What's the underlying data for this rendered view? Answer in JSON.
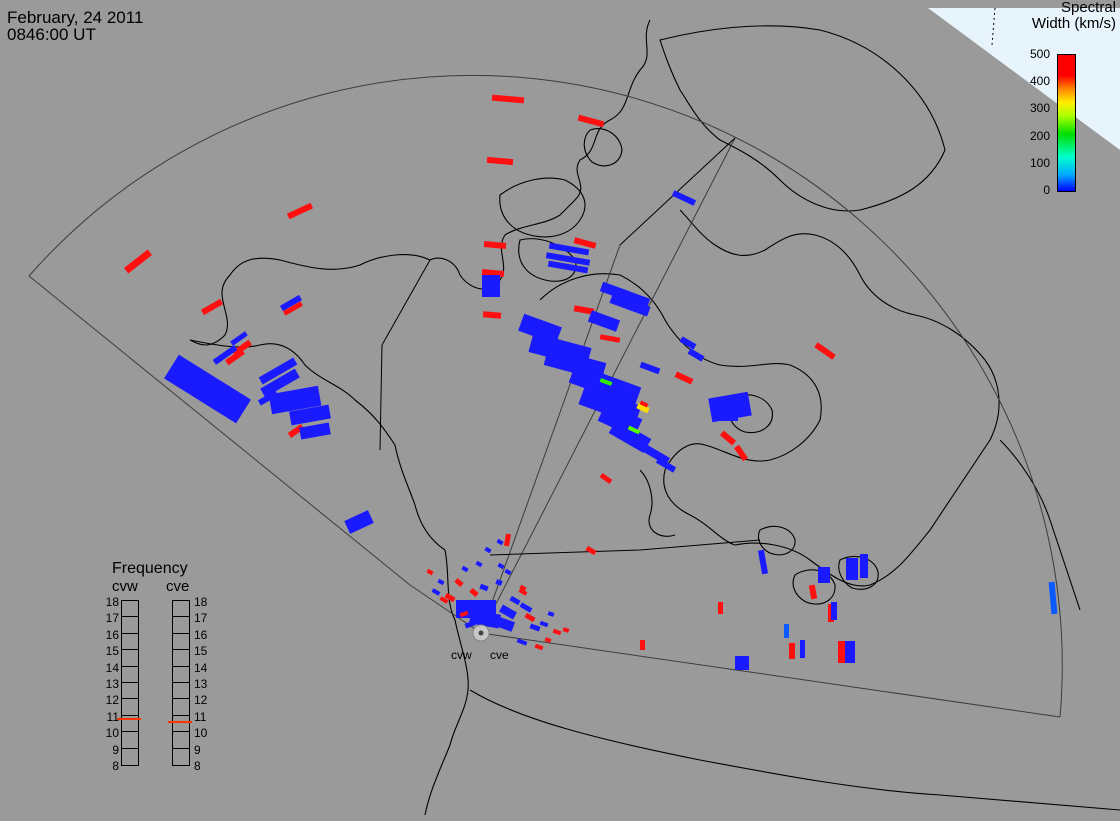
{
  "header": {
    "date": "February, 24 2011",
    "time": "0846:00 UT"
  },
  "colorbar": {
    "title_line1": "Spectral",
    "title_line2": "Width (km/s)",
    "ticks": [
      "500",
      "400",
      "300",
      "200",
      "100",
      "0"
    ],
    "min": 0,
    "max": 500,
    "colors": [
      "#0000ff",
      "#00aaff",
      "#00ffcc",
      "#00dd00",
      "#ffee00",
      "#ff8800",
      "#ff0000"
    ]
  },
  "frequency_panel": {
    "title": "Frequency",
    "radars": [
      {
        "name": "cvw",
        "frequency_mhz": 10.8
      },
      {
        "name": "cve",
        "frequency_mhz": 10.6
      }
    ],
    "scale": [
      "18",
      "17",
      "16",
      "15",
      "14",
      "13",
      "12",
      "11",
      "10",
      "9",
      "8"
    ]
  },
  "sites": [
    {
      "name": "cvw"
    },
    {
      "name": "cve"
    }
  ],
  "colors": {
    "background": "#9a9a9a",
    "coast": "#000000",
    "fov": "#3c3c3c",
    "low_width": "#1a1aff",
    "high_width": "#ff1010"
  }
}
